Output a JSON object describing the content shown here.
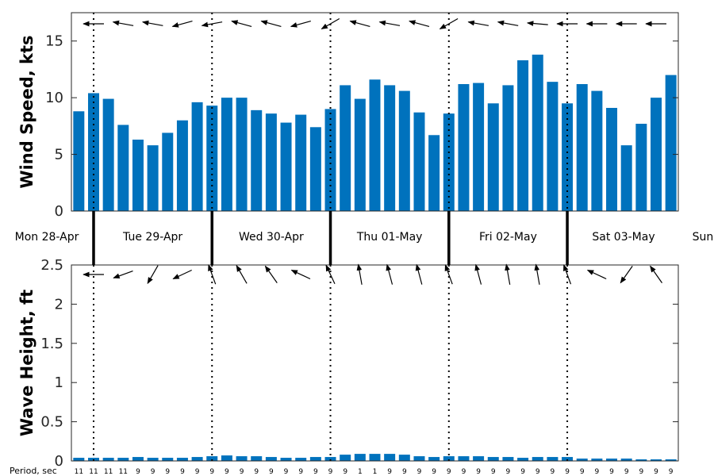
{
  "colors": {
    "bar": "#0072BD",
    "axis": "#262626",
    "arrow": "#000000"
  },
  "chart_data": [
    {
      "type": "bar",
      "ylabel": "Wind Speed, kts",
      "ylim": [
        0,
        17.5
      ],
      "yticks": [
        0,
        5,
        10,
        15
      ],
      "tick_labels": [
        "0",
        "5",
        "10",
        "15"
      ],
      "values": [
        8.8,
        10.4,
        9.9,
        7.6,
        6.3,
        5.8,
        6.9,
        8.0,
        9.6,
        9.3,
        10.0,
        10.0,
        8.9,
        8.6,
        7.8,
        8.5,
        7.4,
        9.0,
        11.1,
        9.9,
        11.6,
        11.1,
        10.6,
        8.7,
        6.7,
        8.6,
        11.2,
        11.3,
        9.5,
        11.1,
        13.3,
        13.8,
        11.4,
        9.5,
        11.2,
        10.6,
        9.1,
        5.8,
        7.7,
        10.0,
        12.0
      ],
      "direction_arrows_deg": [
        {
          "i": 1,
          "deg": 180
        },
        {
          "i": 3,
          "deg": 170
        },
        {
          "i": 5,
          "deg": 170
        },
        {
          "i": 7,
          "deg": 195
        },
        {
          "i": 9,
          "deg": 190
        },
        {
          "i": 11,
          "deg": 165
        },
        {
          "i": 13,
          "deg": 165
        },
        {
          "i": 15,
          "deg": 195
        },
        {
          "i": 17,
          "deg": 210
        },
        {
          "i": 19,
          "deg": 165
        },
        {
          "i": 21,
          "deg": 170
        },
        {
          "i": 23,
          "deg": 165
        },
        {
          "i": 25,
          "deg": 210
        },
        {
          "i": 27,
          "deg": 170
        },
        {
          "i": 29,
          "deg": 170
        },
        {
          "i": 31,
          "deg": 175
        },
        {
          "i": 33,
          "deg": 180
        },
        {
          "i": 35,
          "deg": 180
        },
        {
          "i": 37,
          "deg": 180
        },
        {
          "i": 39,
          "deg": 180
        }
      ]
    },
    {
      "type": "bar",
      "ylabel": "Wave Height, ft",
      "ylim": [
        0,
        2.5
      ],
      "yticks": [
        0,
        0.5,
        1,
        1.5,
        2,
        2.5
      ],
      "tick_labels": [
        "0",
        "0.5",
        "1",
        "1.5",
        "2",
        "2.5"
      ],
      "values": [
        0.04,
        0.04,
        0.04,
        0.04,
        0.05,
        0.04,
        0.04,
        0.04,
        0.05,
        0.06,
        0.07,
        0.06,
        0.06,
        0.05,
        0.04,
        0.04,
        0.05,
        0.05,
        0.08,
        0.09,
        0.09,
        0.09,
        0.08,
        0.06,
        0.05,
        0.06,
        0.06,
        0.06,
        0.05,
        0.05,
        0.04,
        0.05,
        0.05,
        0.05,
        0.03,
        0.03,
        0.03,
        0.03,
        0.02,
        0.02,
        0.02
      ],
      "direction_arrows_deg": [
        {
          "i": 1,
          "deg": 180
        },
        {
          "i": 3,
          "deg": 200
        },
        {
          "i": 5,
          "deg": 240
        },
        {
          "i": 7,
          "deg": 205
        },
        {
          "i": 9,
          "deg": 110
        },
        {
          "i": 11,
          "deg": 120
        },
        {
          "i": 13,
          "deg": 125
        },
        {
          "i": 15,
          "deg": 155
        },
        {
          "i": 17,
          "deg": 115
        },
        {
          "i": 19,
          "deg": 100
        },
        {
          "i": 21,
          "deg": 105
        },
        {
          "i": 23,
          "deg": 105
        },
        {
          "i": 25,
          "deg": 110
        },
        {
          "i": 27,
          "deg": 105
        },
        {
          "i": 29,
          "deg": 100
        },
        {
          "i": 31,
          "deg": 100
        },
        {
          "i": 33,
          "deg": 110
        },
        {
          "i": 35,
          "deg": 155
        },
        {
          "i": 37,
          "deg": 235
        },
        {
          "i": 39,
          "deg": 125
        }
      ]
    }
  ],
  "day_labels": [
    "Mon 28-Apr",
    "Tue 29-Apr",
    "Wed 30-Apr",
    "Thu 01-May",
    "Fri 02-May",
    "Sat 03-May",
    "Sun"
  ],
  "day_boundaries_index": [
    1,
    9,
    17,
    25,
    33
  ],
  "period": {
    "title": "Period, sec",
    "values": [
      "11",
      "11",
      "11",
      "11",
      "9",
      "9",
      "9",
      "9",
      "9",
      "9",
      "9",
      "9",
      "9",
      "9",
      "9",
      "9",
      "9",
      "9",
      "9",
      "1",
      "1",
      "9",
      "9",
      "9",
      "9",
      "9",
      "9",
      "9",
      "9",
      "9",
      "9",
      "9",
      "9",
      "9",
      "9",
      "9",
      "9",
      "9",
      "9",
      "9",
      "9"
    ]
  }
}
